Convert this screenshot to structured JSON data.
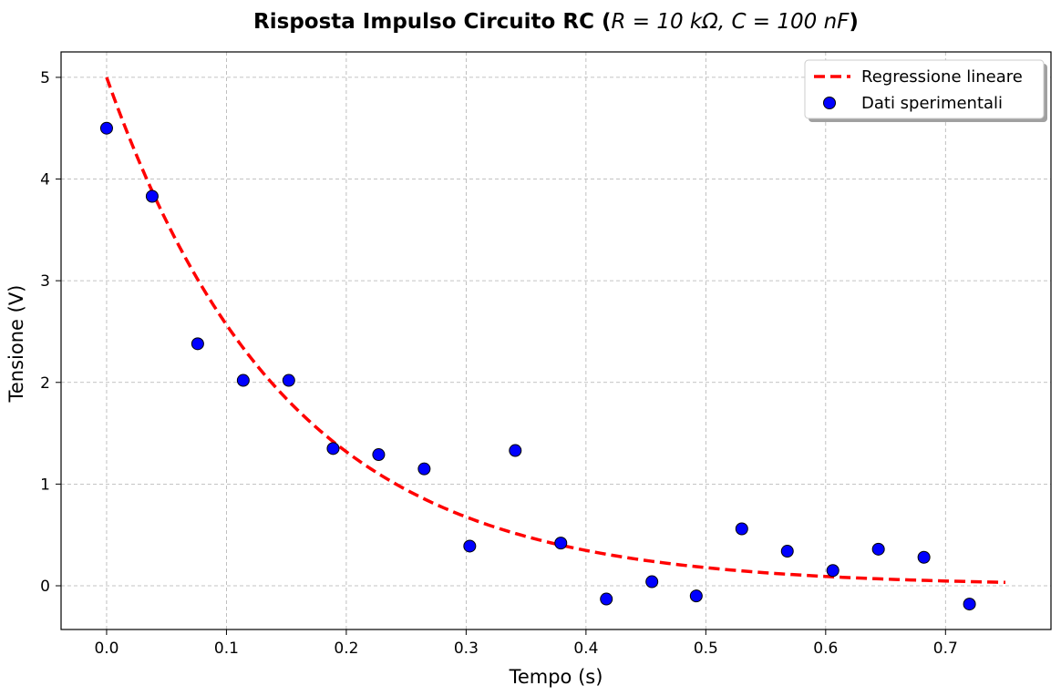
{
  "chart_data": {
    "type": "scatter",
    "title_prefix": "Risposta Impulso Circuito RC (",
    "title_math": "R = 10 kΩ, C = 100 nF",
    "title_suffix": ")",
    "xlabel": "Tempo (s)",
    "ylabel": "Tensione (V)",
    "xlim": [
      -0.038,
      0.788
    ],
    "ylim": [
      -0.43,
      5.25
    ],
    "xticks": [
      "0.0",
      "0.1",
      "0.2",
      "0.3",
      "0.4",
      "0.5",
      "0.6",
      "0.7"
    ],
    "yticks": [
      "0",
      "1",
      "2",
      "3",
      "4",
      "5"
    ],
    "grid": true,
    "legend_position": "upper-right",
    "series": [
      {
        "name": "Regressione lineare",
        "kind": "line",
        "style": "dashed",
        "color": "#ff0000",
        "model": "5*exp(-t/0.15)",
        "x_range": [
          0,
          0.75
        ]
      },
      {
        "name": "Dati sperimentali",
        "kind": "scatter",
        "color": "#0000ff",
        "edge_color": "#000000",
        "x": [
          0.0,
          0.038,
          0.076,
          0.114,
          0.152,
          0.189,
          0.227,
          0.265,
          0.303,
          0.341,
          0.379,
          0.417,
          0.455,
          0.492,
          0.53,
          0.568,
          0.606,
          0.644,
          0.682,
          0.72
        ],
        "y": [
          4.5,
          3.83,
          2.38,
          2.02,
          2.02,
          1.35,
          1.29,
          1.15,
          0.39,
          1.33,
          0.42,
          -0.13,
          0.04,
          -0.1,
          0.56,
          0.34,
          0.15,
          0.36,
          0.28,
          -0.18
        ]
      }
    ]
  }
}
